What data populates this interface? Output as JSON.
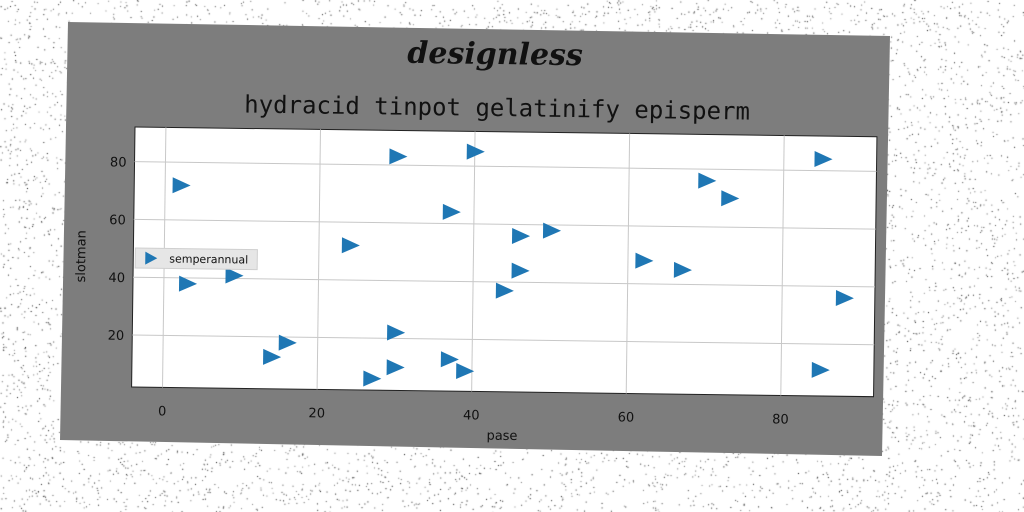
{
  "chart_data": {
    "type": "scatter",
    "suptitle": "designless",
    "title": "hydracid tinpot gelatinify episperm",
    "xlabel": "pase",
    "ylabel": "slotman",
    "xlim": [
      -4,
      92
    ],
    "ylim": [
      2,
      92
    ],
    "xticks": [
      0,
      20,
      40,
      60,
      80
    ],
    "yticks": [
      20,
      40,
      60,
      80
    ],
    "grid": true,
    "legend_position": "center-left",
    "marker": "triangle-right",
    "series_color": "#1f77b4",
    "series": [
      {
        "name": "semperannual",
        "points": [
          {
            "x": 2,
            "y": 72
          },
          {
            "x": 3,
            "y": 38
          },
          {
            "x": 9,
            "y": 41
          },
          {
            "x": 14,
            "y": 13
          },
          {
            "x": 16,
            "y": 18
          },
          {
            "x": 24,
            "y": 52
          },
          {
            "x": 27,
            "y": 6
          },
          {
            "x": 30,
            "y": 10
          },
          {
            "x": 30,
            "y": 22
          },
          {
            "x": 30,
            "y": 83
          },
          {
            "x": 37,
            "y": 13
          },
          {
            "x": 37,
            "y": 64
          },
          {
            "x": 39,
            "y": 9
          },
          {
            "x": 40,
            "y": 85
          },
          {
            "x": 44,
            "y": 37
          },
          {
            "x": 46,
            "y": 44
          },
          {
            "x": 46,
            "y": 56
          },
          {
            "x": 50,
            "y": 58
          },
          {
            "x": 62,
            "y": 48
          },
          {
            "x": 67,
            "y": 45
          },
          {
            "x": 70,
            "y": 76
          },
          {
            "x": 73,
            "y": 70
          },
          {
            "x": 85,
            "y": 84
          },
          {
            "x": 85,
            "y": 11
          },
          {
            "x": 88,
            "y": 36
          }
        ]
      }
    ]
  }
}
